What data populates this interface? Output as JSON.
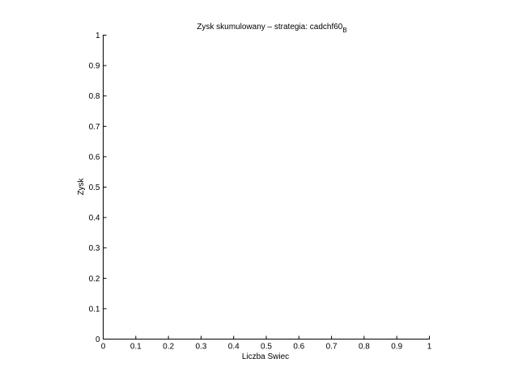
{
  "chart_data": {
    "type": "line",
    "title": "Zysk skumulowany – strategia: cadchf60",
    "title_subscript": "B",
    "xlabel": "Liczba Swiec",
    "ylabel": "Zysk",
    "xlim": [
      0,
      1
    ],
    "ylim": [
      0,
      1
    ],
    "xticks": [
      "0",
      "0.1",
      "0.2",
      "0.3",
      "0.4",
      "0.5",
      "0.6",
      "0.7",
      "0.8",
      "0.9",
      "1"
    ],
    "yticks": [
      "0",
      "0.1",
      "0.2",
      "0.3",
      "0.4",
      "0.5",
      "0.6",
      "0.7",
      "0.8",
      "0.9",
      "1"
    ],
    "grid": false,
    "series": []
  }
}
